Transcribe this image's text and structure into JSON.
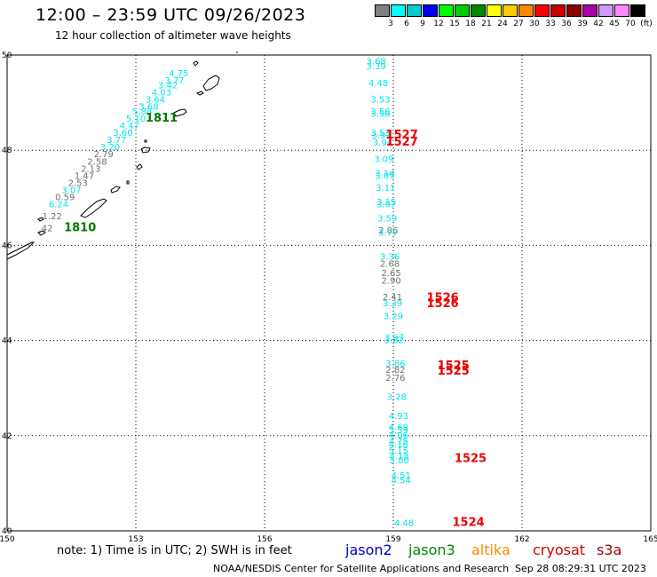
{
  "title": "12:00 – 23:59 UTC 09/26/2023",
  "subtitle": "12 hour collection of altimeter wave heights",
  "colorbar": {
    "colors": [
      "#808080",
      "#00ffff",
      "#00cccc",
      "#0000ff",
      "#00ff00",
      "#00cc00",
      "#008800",
      "#ffff00",
      "#ffcc00",
      "#ff8800",
      "#ff0000",
      "#cc0000",
      "#880000",
      "#aa00aa",
      "#cc99ff",
      "#ff88ff",
      "#000000"
    ],
    "labels": [
      "3",
      "6",
      "9",
      "12",
      "15",
      "18",
      "21",
      "24",
      "27",
      "30",
      "33",
      "36",
      "39",
      "42",
      "45",
      "70",
      "(ft)"
    ]
  },
  "axes": {
    "lon_ticks": [
      "150",
      "153",
      "156",
      "159",
      "162",
      "165"
    ],
    "lat_ticks": [
      "50",
      "48",
      "46",
      "44",
      "42",
      "40"
    ],
    "lon_range": [
      150,
      165
    ],
    "lat_range": [
      40,
      50
    ]
  },
  "colors": {
    "cyan_swh": "#00e5ee",
    "gray_swh": "#707070",
    "time_red": "#ee0000",
    "time_green": "#007700"
  },
  "west_track": {
    "points": [
      {
        "lon": 154.0,
        "lat": 49.55,
        "swh": "4.75",
        "color": "cyan"
      },
      {
        "lon": 153.9,
        "lat": 49.4,
        "swh": "3.77",
        "color": "cyan"
      },
      {
        "lon": 153.75,
        "lat": 49.3,
        "swh": "3.42",
        "color": "cyan"
      },
      {
        "lon": 153.6,
        "lat": 49.15,
        "swh": "4.03",
        "color": "cyan"
      },
      {
        "lon": 153.45,
        "lat": 49.0,
        "swh": "3.64",
        "color": "cyan"
      },
      {
        "lon": 153.3,
        "lat": 48.85,
        "swh": "3.68",
        "color": "cyan"
      },
      {
        "lon": 153.15,
        "lat": 48.75,
        "swh": "5.88",
        "color": "cyan"
      },
      {
        "lon": 153.0,
        "lat": 48.6,
        "swh": "5.10",
        "color": "cyan"
      },
      {
        "lon": 152.85,
        "lat": 48.45,
        "swh": "4.47",
        "color": "cyan"
      },
      {
        "lon": 152.7,
        "lat": 48.3,
        "swh": "3.60",
        "color": "cyan"
      },
      {
        "lon": 152.55,
        "lat": 48.15,
        "swh": "3.77",
        "color": "cyan"
      },
      {
        "lon": 152.4,
        "lat": 48.0,
        "swh": "3.20",
        "color": "cyan"
      },
      {
        "lon": 152.25,
        "lat": 47.85,
        "swh": "2.79",
        "color": "gray"
      },
      {
        "lon": 152.1,
        "lat": 47.7,
        "swh": "2.58",
        "color": "gray"
      },
      {
        "lon": 151.95,
        "lat": 47.55,
        "swh": "2.13",
        "color": "gray"
      },
      {
        "lon": 151.8,
        "lat": 47.4,
        "swh": "1.47",
        "color": "gray"
      },
      {
        "lon": 151.65,
        "lat": 47.25,
        "swh": "2.53",
        "color": "gray"
      },
      {
        "lon": 151.5,
        "lat": 47.1,
        "swh": "3.07",
        "color": "cyan"
      },
      {
        "lon": 151.35,
        "lat": 46.95,
        "swh": "0.59",
        "color": "gray"
      },
      {
        "lon": 151.2,
        "lat": 46.8,
        "swh": "6.24",
        "color": "cyan"
      },
      {
        "lon": 151.05,
        "lat": 46.55,
        "swh": "1.22",
        "color": "gray"
      },
      {
        "lon": 150.9,
        "lat": 46.3,
        "swh": ".42",
        "color": "gray"
      }
    ],
    "time_labels": [
      {
        "lon": 153.6,
        "lat": 48.6,
        "text": "1811",
        "color": "green"
      },
      {
        "lon": 151.7,
        "lat": 46.3,
        "text": "1810",
        "color": "green"
      }
    ]
  },
  "east_track": {
    "points": [
      {
        "lon": 158.6,
        "lat": 49.8,
        "swh": "3.68",
        "color": "cyan"
      },
      {
        "lon": 158.6,
        "lat": 49.7,
        "swh": "3.39",
        "color": "cyan"
      },
      {
        "lon": 158.65,
        "lat": 49.35,
        "swh": "4.48",
        "color": "cyan"
      },
      {
        "lon": 158.7,
        "lat": 49.0,
        "swh": "3.53",
        "color": "cyan"
      },
      {
        "lon": 158.7,
        "lat": 48.75,
        "swh": "3.56",
        "color": "cyan"
      },
      {
        "lon": 158.7,
        "lat": 48.7,
        "swh": "3.58",
        "color": "cyan"
      },
      {
        "lon": 158.7,
        "lat": 48.3,
        "swh": "3.53",
        "color": "cyan"
      },
      {
        "lon": 158.72,
        "lat": 48.25,
        "swh": "3.92",
        "color": "cyan"
      },
      {
        "lon": 158.75,
        "lat": 48.1,
        "swh": "3.94",
        "color": "cyan"
      },
      {
        "lon": 158.78,
        "lat": 47.75,
        "swh": "3.09",
        "color": "cyan"
      },
      {
        "lon": 158.8,
        "lat": 47.45,
        "swh": "3.14",
        "color": "cyan"
      },
      {
        "lon": 158.8,
        "lat": 47.4,
        "swh": "3.09",
        "color": "cyan"
      },
      {
        "lon": 158.82,
        "lat": 47.15,
        "swh": "3.11",
        "color": "cyan"
      },
      {
        "lon": 158.84,
        "lat": 46.85,
        "swh": "3.15",
        "color": "cyan"
      },
      {
        "lon": 158.84,
        "lat": 46.8,
        "swh": "3.07",
        "color": "cyan"
      },
      {
        "lon": 158.86,
        "lat": 46.5,
        "swh": "3.59",
        "color": "cyan"
      },
      {
        "lon": 158.88,
        "lat": 46.25,
        "swh": "2.86",
        "color": "gray"
      },
      {
        "lon": 158.88,
        "lat": 46.2,
        "swh": "3.77",
        "color": "cyan"
      },
      {
        "lon": 158.92,
        "lat": 45.7,
        "swh": "3.36",
        "color": "cyan"
      },
      {
        "lon": 158.92,
        "lat": 45.55,
        "swh": "2.68",
        "color": "gray"
      },
      {
        "lon": 158.95,
        "lat": 45.35,
        "swh": "2.65",
        "color": "gray"
      },
      {
        "lon": 158.95,
        "lat": 45.2,
        "swh": "2.90",
        "color": "gray"
      },
      {
        "lon": 158.98,
        "lat": 44.85,
        "swh": "2.41",
        "color": "gray"
      },
      {
        "lon": 158.98,
        "lat": 44.72,
        "swh": "3.39",
        "color": "cyan"
      },
      {
        "lon": 159.0,
        "lat": 44.45,
        "swh": "3.29",
        "color": "cyan"
      },
      {
        "lon": 159.02,
        "lat": 44.0,
        "swh": "3.97",
        "color": "cyan"
      },
      {
        "lon": 159.02,
        "lat": 43.95,
        "swh": "3.82",
        "color": "cyan"
      },
      {
        "lon": 159.05,
        "lat": 43.45,
        "swh": "3.86",
        "color": "cyan"
      },
      {
        "lon": 159.05,
        "lat": 43.32,
        "swh": "2.82",
        "color": "gray"
      },
      {
        "lon": 159.05,
        "lat": 43.15,
        "swh": "2.76",
        "color": "gray"
      },
      {
        "lon": 159.08,
        "lat": 42.75,
        "swh": "3.28",
        "color": "cyan"
      },
      {
        "lon": 159.12,
        "lat": 42.35,
        "swh": "4.93",
        "color": "cyan"
      },
      {
        "lon": 159.12,
        "lat": 42.12,
        "swh": "4.69",
        "color": "cyan"
      },
      {
        "lon": 159.12,
        "lat": 42.05,
        "swh": "3.59",
        "color": "cyan"
      },
      {
        "lon": 159.12,
        "lat": 41.95,
        "swh": "4.06",
        "color": "cyan"
      },
      {
        "lon": 159.12,
        "lat": 41.82,
        "swh": "4.75",
        "color": "cyan"
      },
      {
        "lon": 159.12,
        "lat": 41.75,
        "swh": "4.16",
        "color": "cyan"
      },
      {
        "lon": 159.12,
        "lat": 41.62,
        "swh": "5.15",
        "color": "cyan"
      },
      {
        "lon": 159.14,
        "lat": 41.5,
        "swh": "4.18",
        "color": "cyan"
      },
      {
        "lon": 159.14,
        "lat": 41.42,
        "swh": "5.00",
        "color": "cyan"
      },
      {
        "lon": 159.18,
        "lat": 41.1,
        "swh": "4.51",
        "color": "cyan"
      },
      {
        "lon": 159.18,
        "lat": 41.0,
        "swh": "4.54",
        "color": "cyan"
      },
      {
        "lon": 159.25,
        "lat": 40.1,
        "swh": "4.48",
        "color": "cyan"
      }
    ],
    "time_labels": [
      {
        "lon": 159.2,
        "lat": 48.25,
        "text": "1527",
        "color": "red"
      },
      {
        "lon": 159.2,
        "lat": 48.1,
        "text": "1527",
        "color": "red"
      },
      {
        "lon": 160.15,
        "lat": 44.82,
        "text": "1526",
        "color": "red"
      },
      {
        "lon": 160.15,
        "lat": 44.7,
        "text": "1526",
        "color": "red"
      },
      {
        "lon": 160.4,
        "lat": 43.4,
        "text": "1525",
        "color": "red"
      },
      {
        "lon": 160.4,
        "lat": 43.28,
        "text": "1525",
        "color": "red"
      },
      {
        "lon": 160.8,
        "lat": 41.45,
        "text": "1525",
        "color": "red"
      },
      {
        "lon": 160.75,
        "lat": 40.1,
        "text": "1524",
        "color": "red"
      }
    ]
  },
  "note": "note: 1) Time is in UTC; 2) SWH is in feet",
  "satellites": [
    {
      "name": "jason2",
      "color": "#0000cc"
    },
    {
      "name": "jason3",
      "color": "#008800"
    },
    {
      "name": "altika",
      "color": "#ff8800"
    },
    {
      "name": "cryosat",
      "color": "#cc0000"
    },
    {
      "name": "s3a",
      "color": "#990000"
    }
  ],
  "credit": "NOAA/NESDIS Center for Satellite Applications and Research",
  "timestamp": "Sep 28 08:29:31 UTC 2023"
}
